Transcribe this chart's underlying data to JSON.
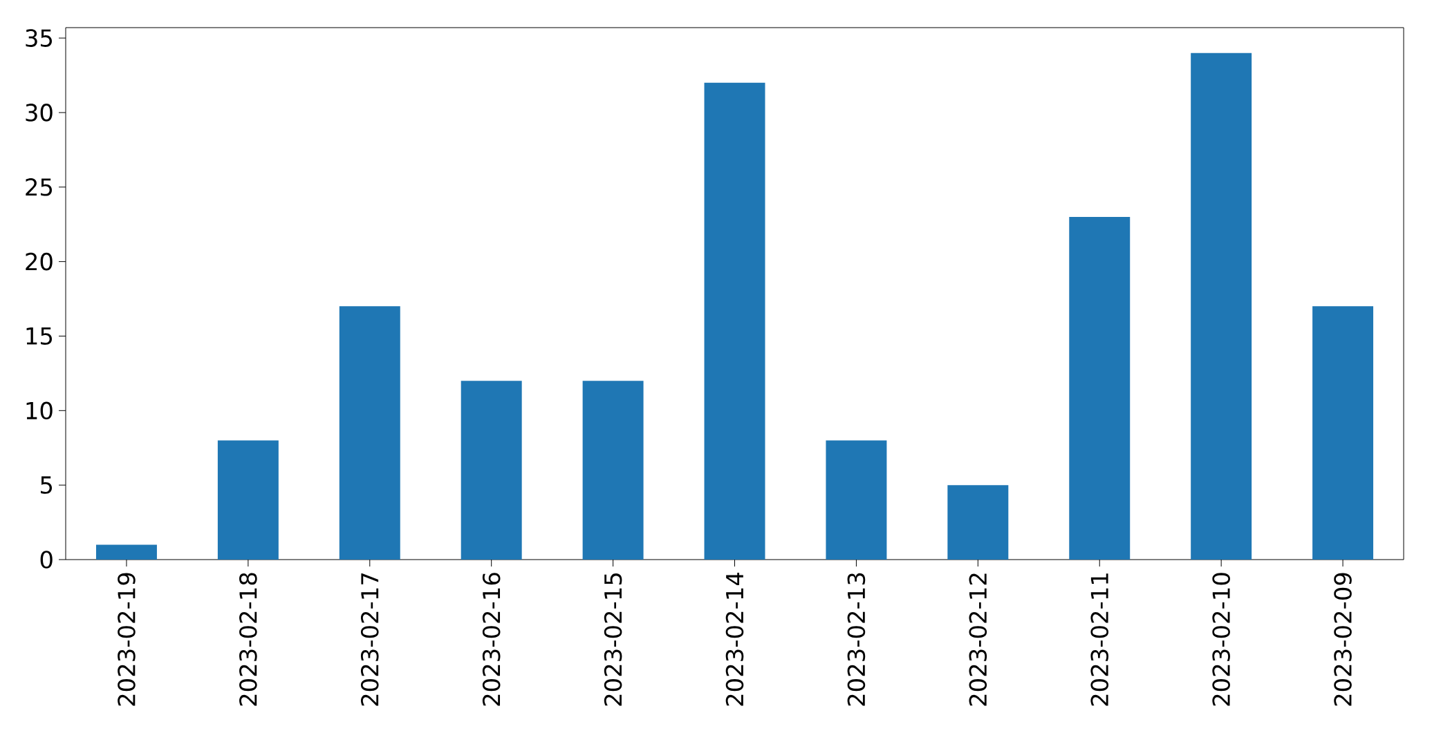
{
  "chart_data": {
    "type": "bar",
    "categories": [
      "2023-02-19",
      "2023-02-18",
      "2023-02-17",
      "2023-02-16",
      "2023-02-15",
      "2023-02-14",
      "2023-02-13",
      "2023-02-12",
      "2023-02-11",
      "2023-02-10",
      "2023-02-09"
    ],
    "values": [
      1,
      8,
      17,
      12,
      12,
      32,
      8,
      5,
      23,
      34,
      17
    ],
    "color": "#1f77b4",
    "ylim": [
      0,
      35.7
    ],
    "yticks": [
      0,
      5,
      10,
      15,
      20,
      25,
      30,
      35
    ]
  }
}
